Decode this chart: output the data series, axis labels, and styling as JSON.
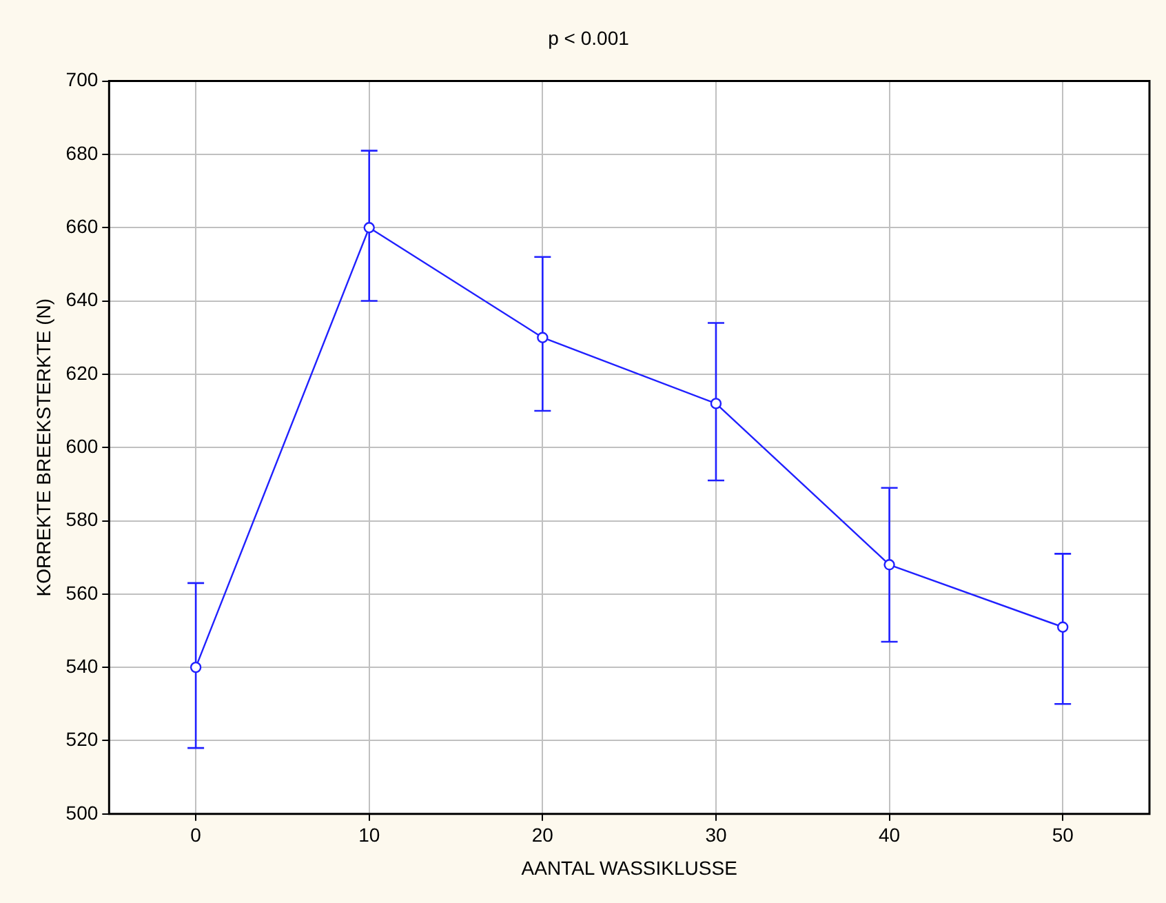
{
  "chart_data": {
    "type": "line",
    "title": "p < 0.001",
    "xlabel": "AANTAL WASSIKLUSSE",
    "ylabel": "KORREKTE BREEKSTERKTE (N)",
    "x": [
      0,
      10,
      20,
      30,
      40,
      50
    ],
    "series": [
      {
        "color": "#2020ff",
        "values": [
          540,
          660,
          630,
          612,
          568,
          551
        ],
        "errors": [
          [
            518,
            563
          ],
          [
            640,
            681
          ],
          [
            610,
            652
          ],
          [
            591,
            634
          ],
          [
            547,
            589
          ],
          [
            530,
            571
          ]
        ]
      }
    ],
    "xlim": [
      -5,
      55
    ],
    "xticks": [
      0,
      10,
      20,
      30,
      40,
      50
    ],
    "ylim": [
      500,
      700
    ],
    "yticks": [
      500,
      520,
      540,
      560,
      580,
      600,
      620,
      640,
      660,
      680,
      700
    ],
    "grid": true,
    "legend": false,
    "marker": "circle",
    "line_style": "solid"
  }
}
